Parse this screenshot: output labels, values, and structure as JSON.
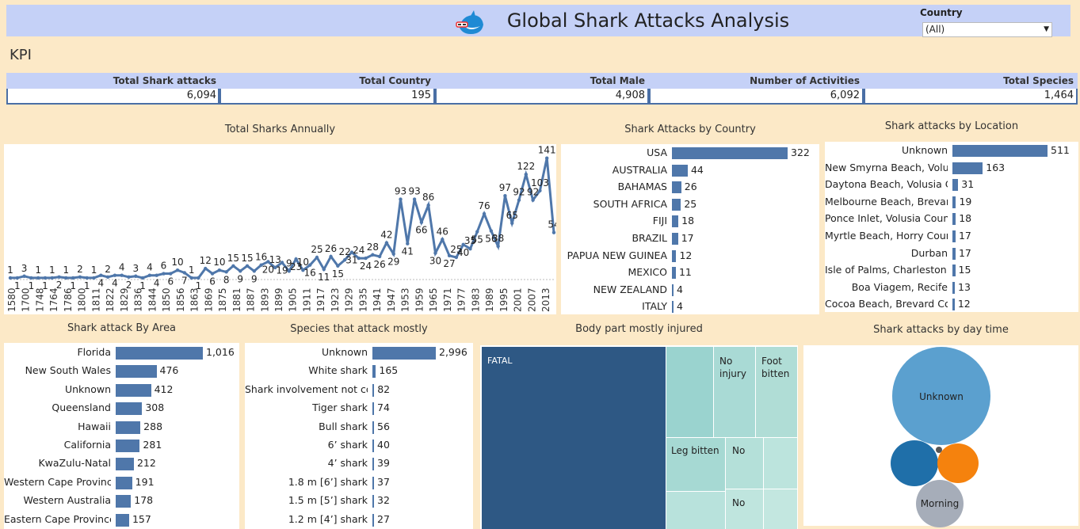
{
  "header": {
    "title": "Global Shark Attacks Analysis",
    "country_label": "Country",
    "country_value": "(All)"
  },
  "kpi_heading": "KPI",
  "kpis": [
    {
      "label": "Total Shark attacks",
      "value": "6,094"
    },
    {
      "label": "Total Country",
      "value": "195"
    },
    {
      "label": "Total Male",
      "value": "4,908"
    },
    {
      "label": "Number of Activities",
      "value": "6,092"
    },
    {
      "label": "Total Species",
      "value": "1,464"
    }
  ],
  "titles": {
    "annual": "Total Sharks Annually",
    "country": "Shark Attacks by Country",
    "location": "Shark attacks by Location",
    "area": "Shark attack By Area",
    "species": "Species that attack mostly",
    "body": "Body part mostly injured",
    "daytime": "Shark attacks by day time"
  },
  "chart_data": [
    {
      "type": "line",
      "title": "Total Sharks Annually",
      "x_tick_labels": [
        "1580",
        "1700",
        "1748",
        "1764",
        "1786",
        "1800",
        "1811",
        "1822",
        "1829",
        "1836",
        "1844",
        "1850",
        "1856",
        "1863",
        "1869",
        "1875",
        "1881",
        "1887",
        "1893",
        "1899",
        "1905",
        "1911",
        "1917",
        "1923",
        "1929",
        "1935",
        "1941",
        "1947",
        "1953",
        "1959",
        "1965",
        "1971",
        "1977",
        "1983",
        "1989",
        "1995",
        "2001",
        "2007",
        "2013"
      ],
      "point_labels": [
        "1",
        "1",
        "3",
        "1",
        "1",
        "1",
        "1",
        "2",
        "1",
        "1",
        "2",
        "1",
        "1",
        "4",
        "2",
        "4",
        "4",
        "2",
        "3",
        "1",
        "4",
        "4",
        "6",
        "6",
        "10",
        "7",
        "1",
        "1",
        "12",
        "6",
        "10",
        "8",
        "15",
        "9",
        "15",
        "9",
        "16",
        "20",
        "13",
        "19",
        "9",
        "23",
        "10",
        "16",
        "25",
        "11",
        "26",
        "15",
        "22",
        "31",
        "24",
        "24",
        "28",
        "26",
        "42",
        "29",
        "93",
        "41",
        "93",
        "66",
        "86",
        "30",
        "46",
        "27",
        "25",
        "40",
        "35",
        "55",
        "76",
        "56",
        "38",
        "97",
        "65",
        "92",
        "122",
        "92",
        "103",
        "141",
        "54"
      ],
      "series": [
        {
          "values": [
            1,
            1,
            3,
            1,
            1,
            1,
            1,
            2,
            1,
            1,
            2,
            1,
            1,
            4,
            2,
            4,
            4,
            2,
            3,
            1,
            4,
            4,
            6,
            6,
            10,
            7,
            1,
            1,
            12,
            6,
            10,
            8,
            15,
            9,
            15,
            9,
            16,
            20,
            13,
            19,
            9,
            23,
            10,
            16,
            25,
            11,
            26,
            15,
            22,
            31,
            24,
            24,
            28,
            26,
            42,
            29,
            93,
            41,
            93,
            66,
            86,
            30,
            46,
            27,
            25,
            40,
            35,
            55,
            76,
            56,
            38,
            97,
            65,
            92,
            122,
            92,
            103,
            141,
            54
          ]
        }
      ],
      "ylim": [
        0,
        150
      ]
    },
    {
      "type": "bar",
      "title": "Shark Attacks by Country",
      "categories": [
        "USA",
        "AUSTRALIA",
        "BAHAMAS",
        "SOUTH AFRICA",
        "FIJI",
        "BRAZIL",
        "PAPUA NEW GUINEA",
        "MEXICO",
        "NEW ZEALAND",
        "ITALY"
      ],
      "values": [
        322,
        44,
        26,
        25,
        18,
        17,
        12,
        11,
        4,
        4
      ]
    },
    {
      "type": "bar",
      "title": "Shark attacks by Location",
      "categories": [
        "Unknown",
        "New Smyrna Beach, Volus..",
        "Daytona Beach, Volusia C..",
        "Melbourne Beach, Brevar..",
        "Ponce Inlet, Volusia County",
        "Myrtle Beach, Horry Coun..",
        "Durban",
        "Isle of Palms, Charleston ..",
        "Boa Viagem, Recife",
        "Cocoa Beach, Brevard Cou.."
      ],
      "values": [
        511,
        163,
        31,
        19,
        18,
        17,
        17,
        15,
        13,
        12
      ]
    },
    {
      "type": "bar",
      "title": "Shark attack By Area",
      "categories": [
        "Florida",
        "New South Wales",
        "Unknown",
        "Queensland",
        "Hawaii",
        "California",
        "KwaZulu-Natal",
        "Western Cape Province",
        "Western Australia",
        "Eastern Cape Province"
      ],
      "values": [
        1016,
        476,
        412,
        308,
        288,
        281,
        212,
        191,
        178,
        157
      ],
      "value_labels": [
        "1,016",
        "476",
        "412",
        "308",
        "288",
        "281",
        "212",
        "191",
        "178",
        "157"
      ]
    },
    {
      "type": "bar",
      "title": "Species that attack mostly",
      "categories": [
        "Unknown",
        "White shark",
        "Shark involvement not co..",
        "Tiger shark",
        "Bull shark",
        "6’ shark",
        "4’ shark",
        "1.8 m [6’] shark",
        "1.5 m [5’] shark",
        "1.2 m [4’] shark"
      ],
      "values": [
        2996,
        165,
        82,
        74,
        56,
        40,
        39,
        37,
        32,
        27
      ],
      "value_labels": [
        "2,996",
        "165",
        "82",
        "74",
        "56",
        "40",
        "39",
        "37",
        "32",
        "27"
      ]
    },
    {
      "type": "heatmap",
      "title": "Body part mostly injured",
      "cells": [
        "FATAL",
        "No injury",
        "Foot bitten",
        "Leg bitten",
        "No",
        "No"
      ]
    },
    {
      "type": "scatter",
      "title": "Shark attacks by day time",
      "bubbles": [
        "Unknown",
        "Morning"
      ]
    }
  ],
  "colors": {
    "bar": "#4f77aa",
    "line": "#4f77aa",
    "header": "#c5d1f7",
    "background": "#fce9c7"
  }
}
